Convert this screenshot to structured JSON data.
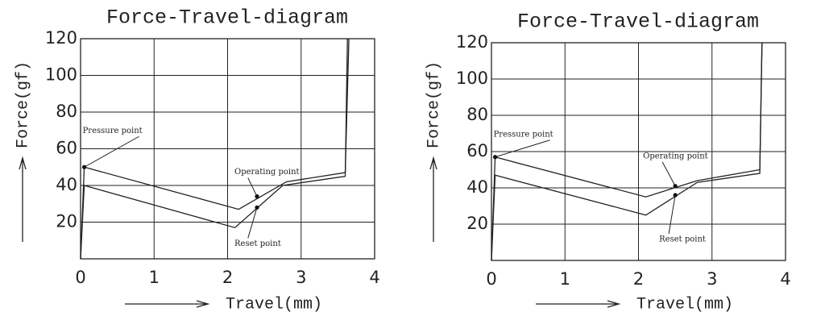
{
  "chart_data": [
    {
      "type": "line",
      "title": "Force-Travel-diagram",
      "y_label": "Force(gf)",
      "x_label": "Travel(mm)",
      "xlim": [
        0,
        4
      ],
      "xticks": [
        0,
        1,
        2,
        3,
        4
      ],
      "ylim": [
        0,
        120
      ],
      "yticks": [
        20,
        40,
        60,
        80,
        100,
        120
      ],
      "grid": true,
      "series": [
        {
          "color": "#222222",
          "x": [
            0,
            0.05,
            2.15,
            2.8,
            3.6,
            3.65
          ],
          "values": [
            0,
            50,
            27,
            42,
            47,
            120
          ]
        },
        {
          "color": "#222222",
          "x": [
            0,
            0.05,
            2.1,
            2.75,
            3.6,
            3.63
          ],
          "values": [
            0,
            40,
            17,
            40,
            45,
            120
          ]
        }
      ],
      "annotations": [
        {
          "text": "Pressure point",
          "x": 0.05,
          "y": 50
        },
        {
          "text": "Operating point",
          "x": 2.4,
          "y": 34
        },
        {
          "text": "Reset point",
          "x": 2.4,
          "y": 28
        }
      ]
    },
    {
      "type": "line",
      "title": "Force-Travel-diagram",
      "y_label": "Force(gf)",
      "x_label": "Travel(mm)",
      "xlim": [
        0,
        4
      ],
      "xticks": [
        0,
        1,
        2,
        3,
        4
      ],
      "ylim": [
        0,
        120
      ],
      "yticks": [
        20,
        40,
        60,
        80,
        100,
        120
      ],
      "grid": true,
      "series": [
        {
          "color": "#222222",
          "x": [
            0,
            0.05,
            2.1,
            2.8,
            3.65,
            3.68
          ],
          "values": [
            0,
            57,
            35,
            44,
            50,
            120
          ]
        },
        {
          "color": "#222222",
          "x": [
            0,
            0.05,
            2.1,
            2.8,
            3.65,
            3.68
          ],
          "values": [
            0,
            47,
            25,
            43,
            48,
            120
          ]
        }
      ],
      "annotations": [
        {
          "text": "Pressure point",
          "x": 0.05,
          "y": 57
        },
        {
          "text": "Operating point",
          "x": 2.5,
          "y": 41
        },
        {
          "text": "Reset point",
          "x": 2.5,
          "y": 36
        }
      ]
    }
  ]
}
